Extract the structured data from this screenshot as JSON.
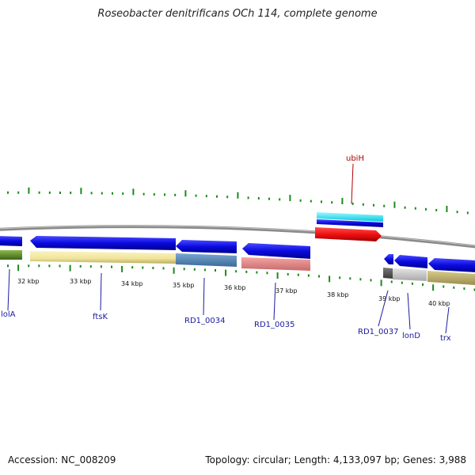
{
  "title": "Roseobacter denitrificans OCh 114, complete genome",
  "footer": {
    "accession": "Accession: NC_008209",
    "summary": "Topology: circular; Length: 4,133,097 bp; Genes: 3,988"
  },
  "scale_labels": [
    "32 kbp",
    "33 kbp",
    "34 kbp",
    "35 kbp",
    "36 kbp",
    "37 kbp",
    "38 kbp",
    "39 kbp",
    "40 kbp"
  ],
  "gene_labels": [
    "lolA",
    "ftsK",
    "RD1_0034",
    "RD1_0035",
    "ubiH",
    "RD1_0037",
    "lonD",
    "trx"
  ],
  "colors": {
    "cds": "#0a0ae0",
    "backbone": "#8a8a8a",
    "tick": "#1a8a1a",
    "gene_label": "#1a1aa0",
    "highlight_label": "#b00000",
    "highlight_cds": "#f01010",
    "cyan_band": "#00e0f0"
  }
}
